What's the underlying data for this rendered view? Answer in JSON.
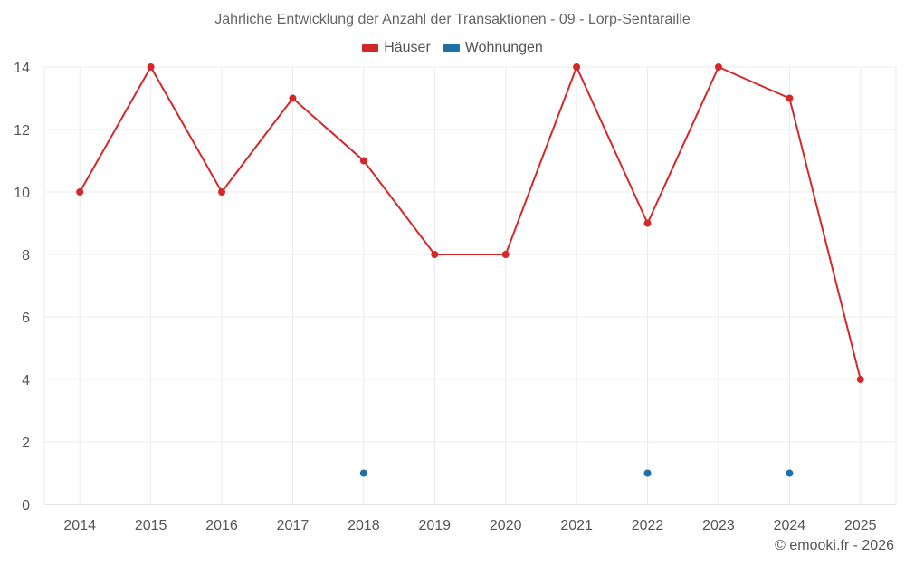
{
  "chart_data": {
    "type": "line",
    "title": "Jährliche Entwicklung der Anzahl der Transaktionen - 09 - Lorp-Sentaraille",
    "xlabel": "",
    "ylabel": "",
    "categories": [
      "2014",
      "2015",
      "2016",
      "2017",
      "2018",
      "2019",
      "2020",
      "2021",
      "2022",
      "2023",
      "2024",
      "2025"
    ],
    "ylim": [
      0,
      14
    ],
    "yticks": [
      0,
      2,
      4,
      6,
      8,
      10,
      12,
      14
    ],
    "grid": true,
    "legend_position": "top-center",
    "series": [
      {
        "name": "Häuser",
        "color": "#d62728",
        "line": true,
        "values": [
          10,
          14,
          10,
          13,
          11,
          8,
          8,
          14,
          9,
          14,
          13,
          4
        ]
      },
      {
        "name": "Wohnungen",
        "color": "#1f6fa8",
        "line": false,
        "values": [
          null,
          null,
          null,
          null,
          1,
          null,
          null,
          null,
          1,
          null,
          1,
          null
        ]
      }
    ]
  },
  "credit": "© emooki.fr - 2026"
}
